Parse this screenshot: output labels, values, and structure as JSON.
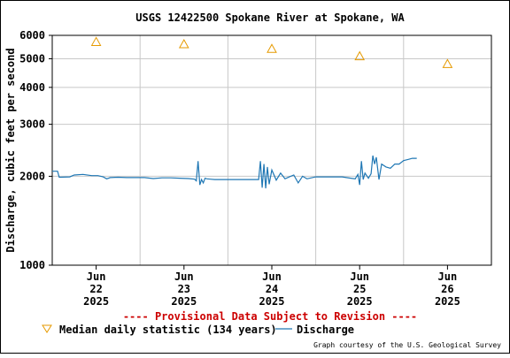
{
  "chart_data": {
    "type": "line",
    "title": "USGS 12422500 Spokane River at Spokane, WA",
    "ylabel": "Discharge, cubic feet per second",
    "xlabel": "",
    "yscale": "log",
    "ylim": [
      1000,
      6000
    ],
    "xlim": [
      0,
      5
    ],
    "y_ticks": [
      {
        "value": 1000,
        "label": "1000"
      },
      {
        "value": 2000,
        "label": "2000"
      },
      {
        "value": 3000,
        "label": "3000"
      },
      {
        "value": 4000,
        "label": "4000"
      },
      {
        "value": 5000,
        "label": "5000"
      },
      {
        "value": 6000,
        "label": "6000"
      }
    ],
    "x_ticks": [
      {
        "value": 0.5,
        "lines": [
          "Jun",
          "22",
          "2025"
        ]
      },
      {
        "value": 1.5,
        "lines": [
          "Jun",
          "23",
          "2025"
        ]
      },
      {
        "value": 2.5,
        "lines": [
          "Jun",
          "24",
          "2025"
        ]
      },
      {
        "value": 3.5,
        "lines": [
          "Jun",
          "25",
          "2025"
        ]
      },
      {
        "value": 4.5,
        "lines": [
          "Jun",
          "26",
          "2025"
        ]
      }
    ],
    "x_gridlines": [
      1,
      2,
      3,
      4
    ],
    "y_gridlines": [
      2000,
      3000,
      4000,
      5000
    ],
    "grid": true,
    "series": [
      {
        "name": "Discharge",
        "color": "#1f77b4",
        "x": [
          0.0,
          0.06,
          0.08,
          0.2,
          0.25,
          0.35,
          0.45,
          0.52,
          0.58,
          0.62,
          0.66,
          0.75,
          0.85,
          0.95,
          1.05,
          1.15,
          1.25,
          1.35,
          1.45,
          1.55,
          1.62,
          1.64,
          1.66,
          1.68,
          1.7,
          1.72,
          1.74,
          1.76,
          1.8,
          1.85,
          1.9,
          2.0,
          2.1,
          2.2,
          2.3,
          2.35,
          2.37,
          2.39,
          2.41,
          2.43,
          2.45,
          2.47,
          2.5,
          2.55,
          2.6,
          2.65,
          2.7,
          2.75,
          2.8,
          2.85,
          2.9,
          3.0,
          3.1,
          3.2,
          3.3,
          3.35,
          3.45,
          3.48,
          3.5,
          3.52,
          3.54,
          3.56,
          3.6,
          3.63,
          3.65,
          3.67,
          3.69,
          3.72,
          3.75,
          3.8,
          3.85,
          3.9,
          3.95,
          4.0,
          4.05,
          4.1,
          4.15
        ],
        "y": [
          2080,
          2080,
          1985,
          1990,
          2020,
          2030,
          2010,
          2010,
          1990,
          1960,
          1980,
          1985,
          1980,
          1980,
          1980,
          1965,
          1975,
          1975,
          1970,
          1965,
          1955,
          1930,
          2250,
          1870,
          1950,
          1900,
          1970,
          1960,
          1955,
          1950,
          1950,
          1950,
          1950,
          1950,
          1950,
          1950,
          2250,
          1830,
          2200,
          1820,
          2150,
          1880,
          2100,
          1940,
          2050,
          1960,
          1990,
          2020,
          1900,
          2000,
          1960,
          1990,
          1990,
          1990,
          1990,
          1980,
          1960,
          2030,
          1870,
          2250,
          1950,
          2050,
          1970,
          2040,
          2350,
          2200,
          2320,
          1950,
          2200,
          2150,
          2130,
          2200,
          2200,
          2260,
          2280,
          2300,
          2300
        ]
      },
      {
        "name": "Median daily statistic (134 years)",
        "color": "#e69a00",
        "marker": "triangle",
        "x": [
          0.5,
          1.5,
          2.5,
          3.5,
          4.5
        ],
        "y": [
          5700,
          5600,
          5400,
          5100,
          4800
        ]
      }
    ],
    "annotation": "---- Provisional Data Subject to Revision ----",
    "annotation_color": "#cc0000",
    "legend_placement": "bottom",
    "credit": "Graph courtesy of the U.S. Geological Survey"
  }
}
